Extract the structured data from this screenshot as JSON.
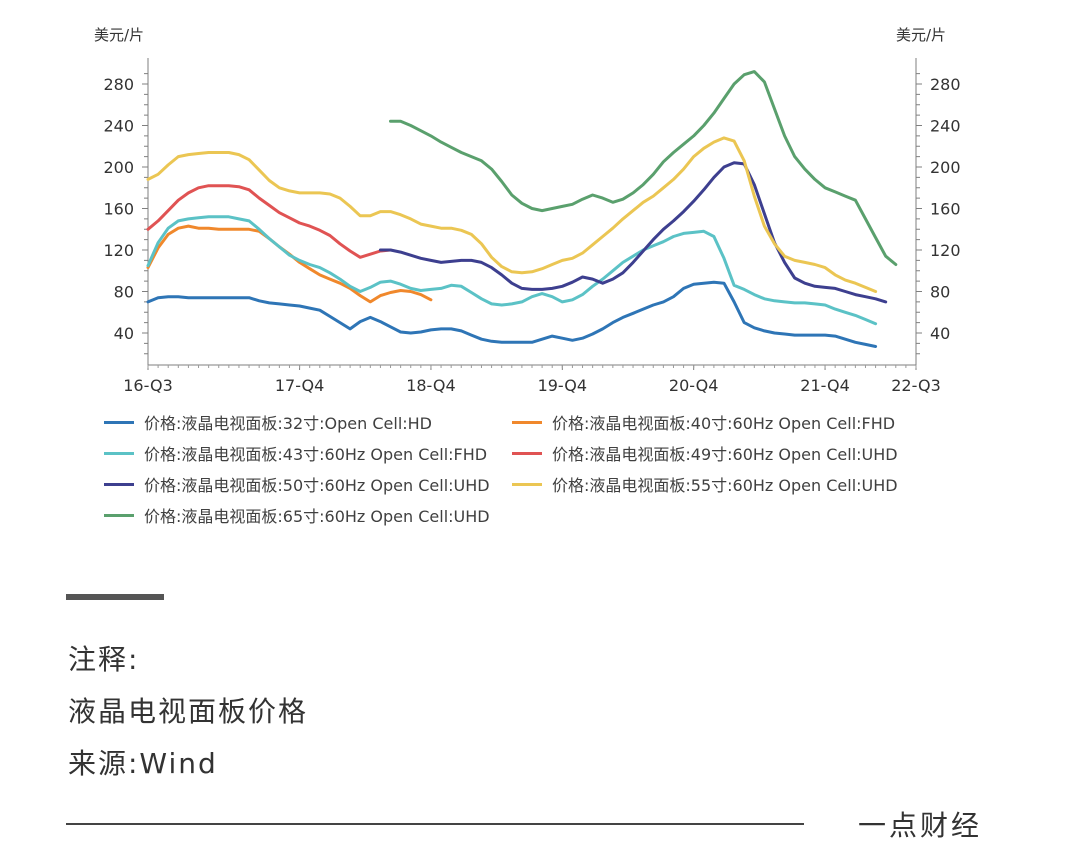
{
  "chart_data": {
    "type": "line",
    "y_unit_left": "美元/片",
    "y_unit_right": "美元/片",
    "y_ticks": [
      40,
      80,
      120,
      160,
      200,
      240,
      280
    ],
    "ylim": [
      15,
      300
    ],
    "x_labels": [
      "16-Q3",
      "17-Q4",
      "18-Q4",
      "19-Q4",
      "20-Q4",
      "21-Q4",
      "22-Q3"
    ],
    "x_label_positions": [
      0,
      15,
      28,
      41,
      54,
      67,
      76
    ],
    "x_range": [
      0,
      76
    ],
    "grid": false,
    "legend_position": "bottom",
    "series": [
      {
        "name": "价格:液晶电视面板:32寸:Open Cell:HD",
        "color": "#2e75b6",
        "x_start": 0,
        "values": [
          70,
          74,
          75,
          75,
          74,
          74,
          74,
          74,
          74,
          74,
          74,
          71,
          69,
          68,
          67,
          66,
          64,
          62,
          56,
          50,
          44,
          51,
          55,
          51,
          46,
          41,
          40,
          41,
          43,
          44,
          44,
          42,
          38,
          34,
          32,
          31,
          31,
          31,
          31,
          34,
          37,
          35,
          33,
          35,
          39,
          44,
          50,
          55,
          59,
          63,
          67,
          70,
          75,
          83,
          87,
          88,
          89,
          88,
          70,
          50,
          45,
          42,
          40,
          39,
          38,
          38,
          38,
          38,
          37,
          34,
          31,
          29,
          27
        ]
      },
      {
        "name": "价格:液晶电视面板:40寸:60Hz Open Cell:FHD",
        "color": "#f0882c",
        "x_start": 0,
        "values": [
          103,
          122,
          135,
          141,
          143,
          141,
          141,
          140,
          140,
          140,
          140,
          138,
          131,
          123,
          116,
          108,
          102,
          96,
          92,
          88,
          83,
          76,
          70,
          76,
          79,
          81,
          80,
          77,
          72
        ]
      },
      {
        "name": "价格:液晶电视面板:43寸:60Hz Open Cell:FHD",
        "color": "#5bc2c6",
        "x_start": 0,
        "values": [
          105,
          127,
          141,
          148,
          150,
          151,
          152,
          152,
          152,
          150,
          148,
          140,
          131,
          123,
          115,
          110,
          106,
          103,
          98,
          92,
          85,
          80,
          84,
          89,
          90,
          87,
          83,
          81,
          82,
          83,
          86,
          85,
          79,
          73,
          68,
          67,
          68,
          70,
          75,
          78,
          75,
          70,
          72,
          77,
          85,
          92,
          100,
          108,
          114,
          120,
          124,
          128,
          133,
          136,
          137,
          138,
          133,
          112,
          86,
          82,
          77,
          73,
          71,
          70,
          69,
          69,
          68,
          67,
          63,
          60,
          57,
          53,
          49
        ]
      },
      {
        "name": "价格:液晶电视面板:49寸:60Hz Open Cell:UHD",
        "color": "#e05353",
        "x_start": 0,
        "values": [
          140,
          148,
          158,
          168,
          175,
          180,
          182,
          182,
          182,
          181,
          178,
          170,
          163,
          156,
          151,
          146,
          143,
          139,
          134,
          126,
          119,
          113,
          116,
          119,
          120
        ]
      },
      {
        "name": "价格:液晶电视面板:50寸:60Hz Open Cell:UHD",
        "color": "#3d3f8f",
        "x_start": 23,
        "values": [
          120,
          120,
          118,
          115,
          112,
          110,
          108,
          109,
          110,
          110,
          108,
          103,
          96,
          88,
          83,
          82,
          82,
          83,
          85,
          89,
          94,
          92,
          88,
          92,
          98,
          108,
          119,
          130,
          140,
          148,
          157,
          167,
          178,
          190,
          200,
          204,
          203,
          183,
          155,
          127,
          108,
          93,
          88,
          85,
          84,
          83,
          80,
          77,
          75,
          73,
          70
        ]
      },
      {
        "name": "价格:液晶电视面板:55寸:60Hz Open Cell:UHD",
        "color": "#ebc653",
        "x_start": 0,
        "values": [
          188,
          193,
          202,
          210,
          212,
          213,
          214,
          214,
          214,
          212,
          207,
          197,
          187,
          180,
          177,
          175,
          175,
          175,
          174,
          170,
          162,
          153,
          153,
          157,
          157,
          154,
          150,
          145,
          143,
          141,
          141,
          139,
          135,
          126,
          113,
          104,
          99,
          98,
          99,
          102,
          106,
          110,
          112,
          117,
          125,
          133,
          141,
          150,
          158,
          166,
          172,
          180,
          188,
          198,
          210,
          218,
          224,
          228,
          225,
          206,
          172,
          143,
          126,
          114,
          110,
          108,
          106,
          103,
          96,
          91,
          88,
          84,
          80
        ]
      },
      {
        "name": "价格:液晶电视面板:65寸:60Hz Open Cell:UHD",
        "color": "#5aa06d",
        "x_start": 24,
        "values": [
          244,
          244,
          240,
          235,
          230,
          224,
          219,
          214,
          210,
          206,
          198,
          186,
          173,
          165,
          160,
          158,
          160,
          162,
          164,
          169,
          173,
          170,
          166,
          169,
          175,
          183,
          193,
          205,
          214,
          222,
          230,
          240,
          252,
          266,
          280,
          289,
          292,
          282,
          256,
          230,
          210,
          198,
          188,
          180,
          176,
          172,
          168,
          150,
          132,
          114,
          106
        ]
      }
    ]
  },
  "notes": {
    "label_title": "注释:",
    "label_desc": "液晶电视面板价格",
    "label_source": "来源:Wind"
  },
  "brand": "一点财经"
}
